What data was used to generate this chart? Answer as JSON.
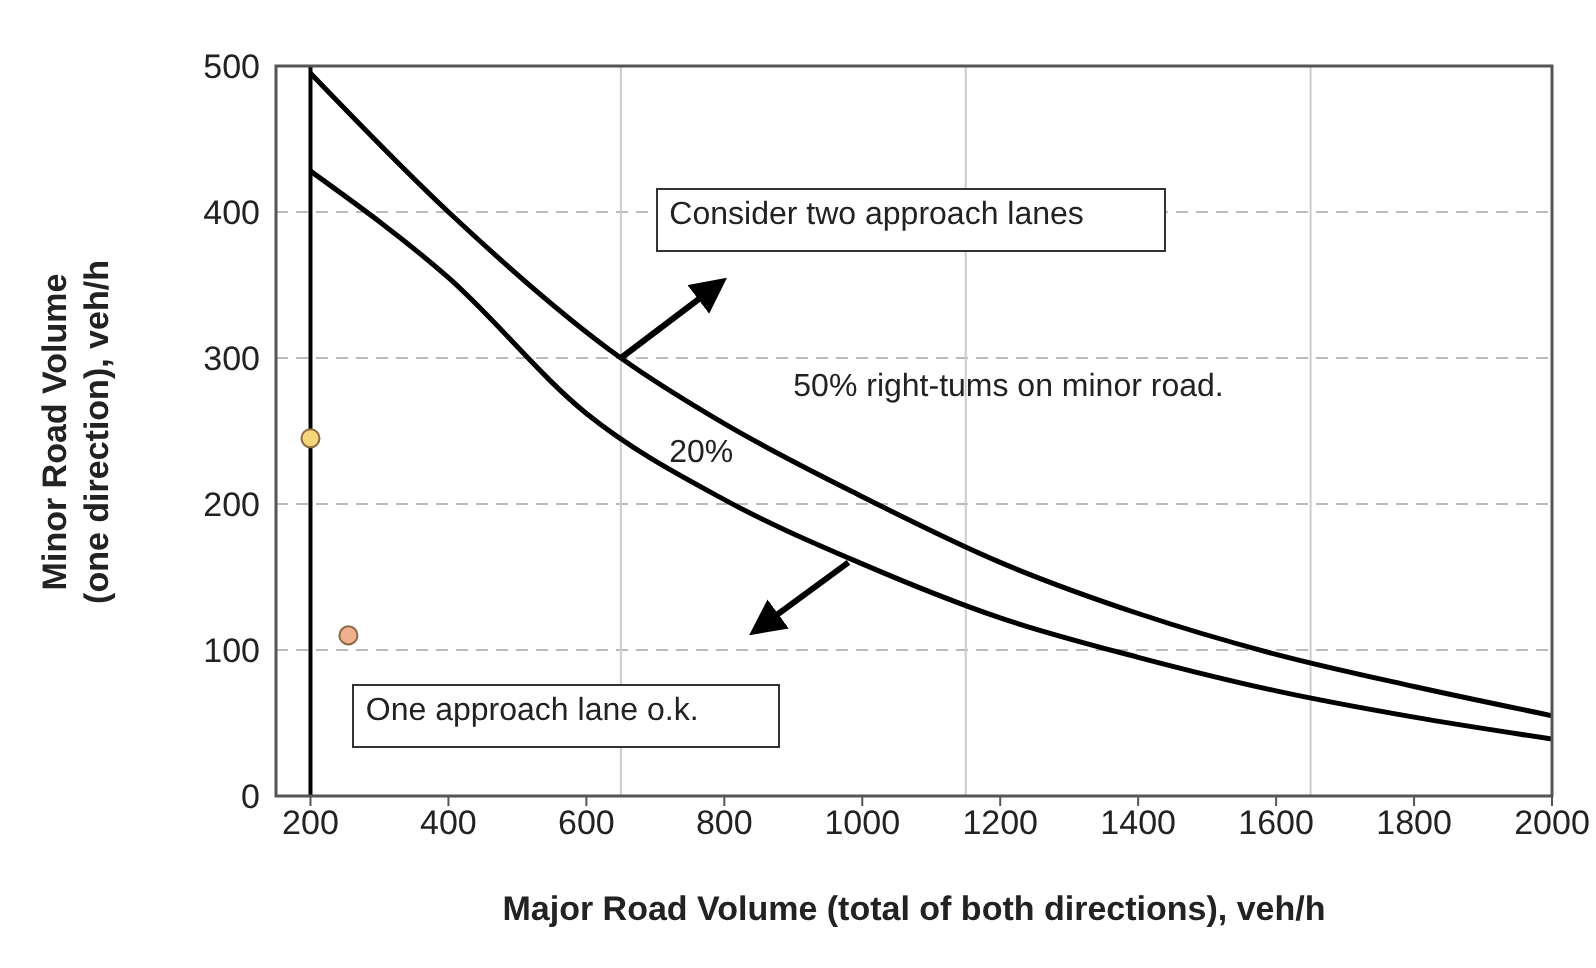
{
  "chart_data": {
    "type": "line",
    "xlabel": "Major Road Volume (total of both directions), veh/h",
    "ylabel": "Minor Road Volume (one direction), veh/h",
    "xlim": [
      150,
      2000
    ],
    "ylim": [
      0,
      500
    ],
    "xticks": [
      200,
      400,
      600,
      800,
      1000,
      1200,
      1400,
      1600,
      1800,
      2000
    ],
    "yticks": [
      0,
      100,
      200,
      300,
      400,
      500
    ],
    "grid": "y",
    "marker": "none",
    "line_style": "solid",
    "series": [
      {
        "color": "#000000",
        "x": [
          200,
          400,
          650,
          800,
          1000,
          1200,
          1400,
          1600,
          1800,
          2000
        ],
        "values": [
          495,
          400,
          300,
          255,
          205,
          160,
          125,
          97,
          75,
          55
        ]
      },
      {
        "color": "#000000",
        "x": [
          200,
          400,
          600,
          800,
          1000,
          1200,
          1400,
          1600,
          1800,
          2000
        ],
        "values": [
          428,
          355,
          262,
          203,
          159,
          122,
          95,
          72,
          54,
          39
        ]
      },
      {
        "type": "scatter",
        "marker": "circle",
        "x": [
          200,
          255
        ],
        "values": [
          245,
          110
        ],
        "colors": [
          "#f5d67a",
          "#f0b090"
        ]
      }
    ],
    "ref_lines": [
      {
        "axis": "x",
        "value": 200,
        "color": "#000000"
      },
      {
        "axis": "x",
        "value": 650,
        "color": "#cccccc"
      },
      {
        "axis": "x",
        "value": 1150,
        "color": "#cccccc"
      },
      {
        "axis": "x",
        "value": 1650,
        "color": "#cccccc"
      }
    ],
    "annotations": [
      "Consider two approach lanes",
      "50% right-tums on minor road.",
      "20%",
      "One approach lane o.k."
    ]
  }
}
